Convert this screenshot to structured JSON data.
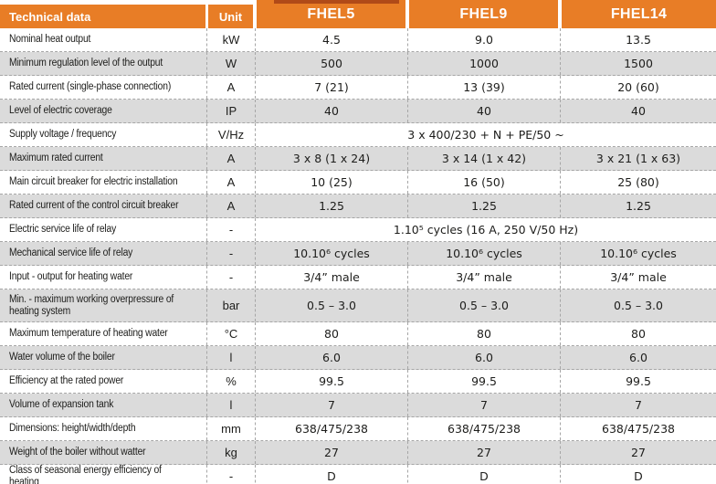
{
  "header": {
    "title": "Technical data",
    "unit_label": "Unit",
    "models": [
      "FHEL5",
      "FHEL9",
      "FHEL14"
    ]
  },
  "colors": {
    "header_orange": "#e87d26",
    "header_tab_dark": "#b04a18",
    "row_alt_gray": "#dbdbdb"
  },
  "rows": [
    {
      "label": "Nominal heat output",
      "unit": "kW",
      "values": [
        "4.5",
        "9.0",
        "13.5"
      ]
    },
    {
      "label": "Minimum regulation level of the output",
      "unit": "W",
      "values": [
        "500",
        "1000",
        "1500"
      ]
    },
    {
      "label": "Rated current (single-phase connection)",
      "unit": "A",
      "values": [
        "7 (21)",
        "13 (39)",
        "20 (60)"
      ]
    },
    {
      "label": "Level of electric coverage",
      "unit": "IP",
      "values": [
        "40",
        "40",
        "40"
      ]
    },
    {
      "label": "Supply voltage / frequency",
      "unit": "V/Hz",
      "span": true,
      "values": [
        "3 x 400/230 + N + PE/50 ~"
      ]
    },
    {
      "label": "Maximum rated current",
      "unit": "A",
      "values": [
        "3 x 8 (1 x 24)",
        "3 x 14 (1 x 42)",
        "3 x 21 (1 x 63)"
      ]
    },
    {
      "label": "Main circuit breaker for electric installation",
      "unit": "A",
      "values": [
        "10 (25)",
        "16 (50)",
        "25 (80)"
      ]
    },
    {
      "label": "Rated current of the control circuit breaker",
      "unit": "A",
      "values": [
        "1.25",
        "1.25",
        "1.25"
      ]
    },
    {
      "label": "Electric service life of relay",
      "unit": "-",
      "span": true,
      "values": [
        "1.10⁵ cycles (16 A, 250 V/50 Hz)"
      ]
    },
    {
      "label": "Mechanical service life of relay",
      "unit": "-",
      "values": [
        "10.10⁶ cycles",
        "10.10⁶ cycles",
        "10.10⁶ cycles"
      ]
    },
    {
      "label": "Input - output for heating water",
      "unit": "-",
      "values": [
        "3/4” male",
        "3/4” male",
        "3/4” male"
      ]
    },
    {
      "label": "Min. - maximum working overpressure of heating system",
      "unit": "bar",
      "tall": true,
      "values": [
        "0.5 – 3.0",
        "0.5 – 3.0",
        "0.5 – 3.0"
      ]
    },
    {
      "label": "Maximum temperature of heating water",
      "unit": "°C",
      "values": [
        "80",
        "80",
        "80"
      ]
    },
    {
      "label": "Water volume of the boiler",
      "unit": "l",
      "values": [
        "6.0",
        "6.0",
        "6.0"
      ]
    },
    {
      "label": "Efficiency at the rated power",
      "unit": "%",
      "values": [
        "99.5",
        "99.5",
        "99.5"
      ]
    },
    {
      "label": "Volume of expansion tank",
      "unit": "l",
      "values": [
        "7",
        "7",
        "7"
      ]
    },
    {
      "label": "Dimensions: height/width/depth",
      "unit": "mm",
      "values": [
        "638/475/238",
        "638/475/238",
        "638/475/238"
      ]
    },
    {
      "label": "Weight of the boiler without watter",
      "unit": "kg",
      "values": [
        "27",
        "27",
        "27"
      ]
    },
    {
      "label": "Class of seasonal energy efficiency of heating",
      "unit": "-",
      "values": [
        "D",
        "D",
        "D"
      ]
    }
  ]
}
